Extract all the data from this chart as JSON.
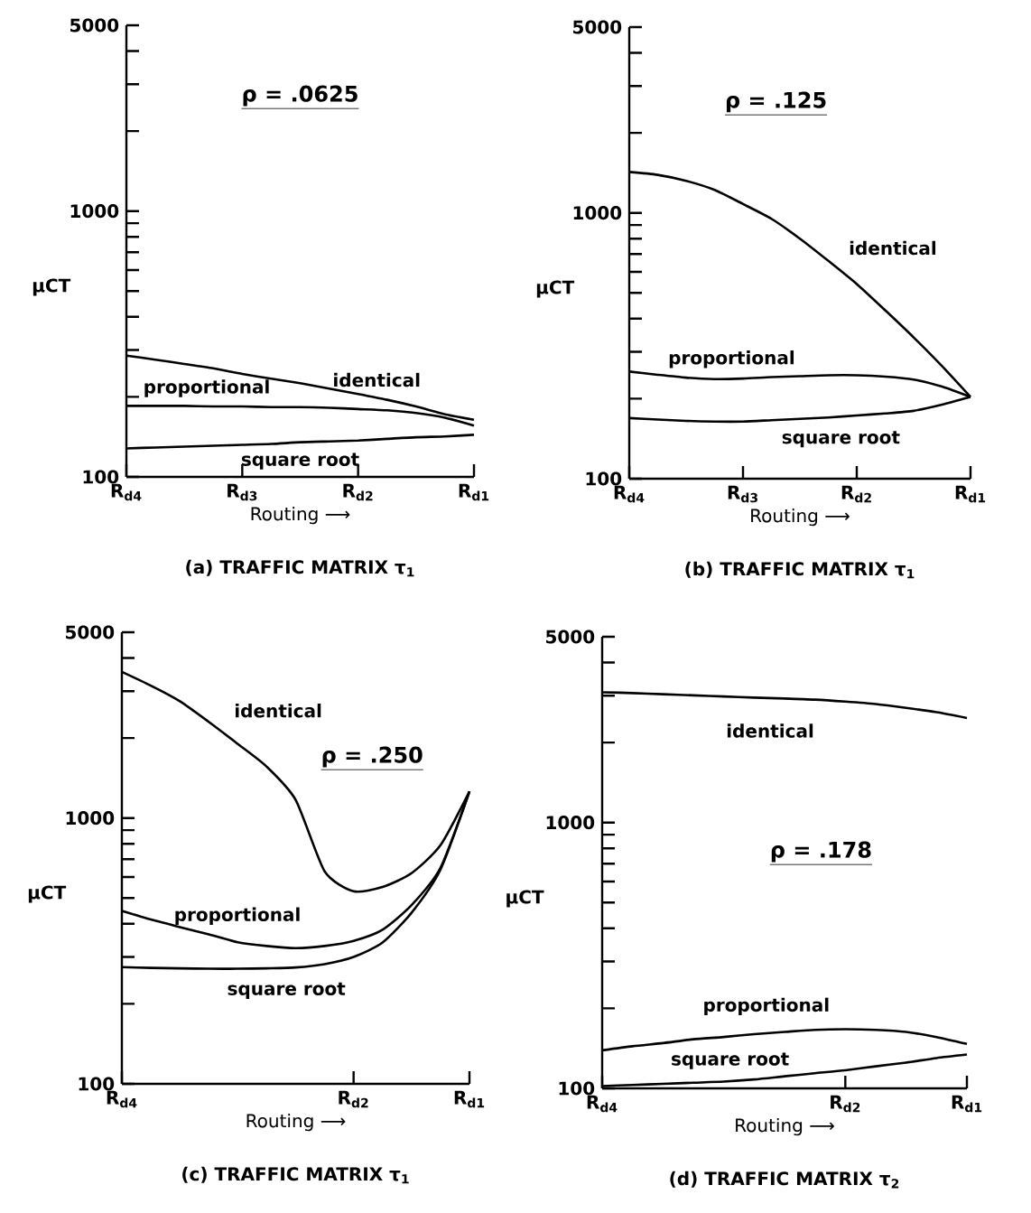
{
  "chart_data": [
    {
      "type": "line",
      "title": "(a) TRAFFIC MATRIX τ$_{1}$",
      "xlabel": "Routing ⟶",
      "ylabel": "μCT",
      "log": "y",
      "marker": "none",
      "line_style": "solid",
      "annotations": [
        "ρ = .0625"
      ],
      "categories": [
        "R$_{d4}$",
        null,
        null,
        null,
        "R$_{d3}$",
        null,
        null,
        null,
        "R$_{d2}$",
        null,
        null,
        null,
        "R$_{d1}$"
      ],
      "ylim": [
        100,
        5000
      ],
      "yticks": [
        100,
        {
          "value": 200,
          "label": null
        },
        {
          "value": 300,
          "label": null
        },
        {
          "value": 400,
          "label": null
        },
        {
          "value": 500,
          "label": null
        },
        {
          "value": 600,
          "label": null
        },
        {
          "value": 700,
          "label": null
        },
        {
          "value": 800,
          "label": null
        },
        {
          "value": 900,
          "label": null
        },
        1000,
        {
          "value": 2000,
          "label": null
        },
        {
          "value": 3000,
          "label": null
        },
        {
          "value": 4000,
          "label": null
        },
        5000
      ],
      "series": [
        {
          "name": "identical",
          "color": "#000000",
          "values": [
            286,
            276,
            266,
            256,
            244,
            234,
            225,
            215,
            205,
            195,
            184,
            172,
            164
          ]
        },
        {
          "name": "proportional",
          "color": "#000000",
          "values": [
            185,
            185,
            185,
            184,
            184,
            183,
            183,
            182,
            180,
            178,
            174,
            167,
            156
          ]
        },
        {
          "name": "square root",
          "color": "#000000",
          "values": [
            128,
            129,
            130,
            131,
            132,
            133,
            135,
            136,
            137,
            139,
            141,
            142,
            144
          ]
        }
      ]
    },
    {
      "type": "line",
      "title": "(b) TRAFFIC MATRIX τ$_{1}$",
      "xlabel": "Routing ⟶",
      "ylabel": "μCT",
      "log": "y",
      "marker": "none",
      "line_style": "solid",
      "annotations": [
        "ρ = .125"
      ],
      "categories": [
        "R$_{d4}$",
        null,
        null,
        null,
        "R$_{d3}$",
        null,
        null,
        null,
        "R$_{d2}$",
        null,
        null,
        null,
        "R$_{d1}$"
      ],
      "ylim": [
        100,
        5000
      ],
      "yticks": [
        100,
        {
          "value": 200,
          "label": null
        },
        {
          "value": 300,
          "label": null
        },
        {
          "value": 400,
          "label": null
        },
        {
          "value": 500,
          "label": null
        },
        {
          "value": 600,
          "label": null
        },
        {
          "value": 700,
          "label": null
        },
        {
          "value": 800,
          "label": null
        },
        {
          "value": 900,
          "label": null
        },
        1000,
        {
          "value": 2000,
          "label": null
        },
        {
          "value": 3000,
          "label": null
        },
        {
          "value": 4000,
          "label": null
        },
        5000
      ],
      "series": [
        {
          "name": "identical",
          "color": "#000000",
          "values": [
            1425,
            1390,
            1320,
            1220,
            1080,
            950,
            800,
            660,
            540,
            430,
            340,
            265,
            203
          ]
        },
        {
          "name": "proportional",
          "color": "#000000",
          "values": [
            253,
            246,
            240,
            237,
            238,
            241,
            243,
            245,
            245,
            242,
            236,
            222,
            203
          ]
        },
        {
          "name": "square root",
          "color": "#000000",
          "values": [
            169,
            167,
            165,
            164,
            164,
            166,
            168,
            170,
            173,
            176,
            180,
            190,
            203
          ]
        }
      ]
    },
    {
      "type": "line",
      "title": "(c) TRAFFIC MATRIX τ$_{1}$",
      "xlabel": "Routing ⟶",
      "ylabel": "μCT",
      "log": "y",
      "marker": "none",
      "line_style": "solid",
      "annotations": [
        "ρ = .250"
      ],
      "categories": [
        "R$_{d4}$",
        null,
        null,
        null,
        null,
        null,
        null,
        null,
        "R$_{d2}$",
        null,
        null,
        null,
        "R$_{d1}$"
      ],
      "ylim": [
        100,
        5000
      ],
      "yticks": [
        100,
        {
          "value": 200,
          "label": null
        },
        {
          "value": 300,
          "label": null
        },
        {
          "value": 400,
          "label": null
        },
        {
          "value": 500,
          "label": null
        },
        {
          "value": 600,
          "label": null
        },
        {
          "value": 700,
          "label": null
        },
        {
          "value": 800,
          "label": null
        },
        {
          "value": 900,
          "label": null
        },
        1000,
        {
          "value": 2000,
          "label": null
        },
        {
          "value": 3000,
          "label": null
        },
        {
          "value": 4000,
          "label": null
        },
        5000
      ],
      "series": [
        {
          "name": "identical",
          "color": "#000000",
          "values": [
            3548,
            3150,
            2750,
            2300,
            1900,
            1560,
            1170,
            630,
            530,
            550,
            620,
            790,
            1259
          ]
        },
        {
          "name": "proportional",
          "color": "#000000",
          "values": [
            447,
            415,
            389,
            365,
            341,
            330,
            324,
            330,
            345,
            380,
            470,
            650,
            1259
          ]
        },
        {
          "name": "square root",
          "color": "#000000",
          "values": [
            275,
            273,
            272,
            271,
            271,
            272,
            274,
            282,
            300,
            340,
            440,
            640,
            1259
          ]
        }
      ]
    },
    {
      "type": "line",
      "title": "(d) TRAFFIC MATRIX τ$_{2}$",
      "xlabel": "Routing ⟶",
      "ylabel": "μCT",
      "log": "y",
      "marker": "none",
      "line_style": "solid",
      "annotations": [
        "ρ = .178"
      ],
      "categories": [
        "R$_{d4}$",
        null,
        null,
        null,
        null,
        null,
        null,
        null,
        "R$_{d2}$",
        null,
        null,
        null,
        "R$_{d1}$"
      ],
      "ylim": [
        100,
        5000
      ],
      "yticks": [
        100,
        {
          "value": 200,
          "label": null
        },
        {
          "value": 300,
          "label": null
        },
        {
          "value": 400,
          "label": null
        },
        {
          "value": 500,
          "label": null
        },
        {
          "value": 600,
          "label": null
        },
        {
          "value": 700,
          "label": null
        },
        {
          "value": 800,
          "label": null
        },
        {
          "value": 900,
          "label": null
        },
        1000,
        {
          "value": 2000,
          "label": null
        },
        {
          "value": 3000,
          "label": null
        },
        {
          "value": 4000,
          "label": null
        },
        5000
      ],
      "series": [
        {
          "name": "identical",
          "color": "#000000",
          "values": [
            3090,
            3070,
            3040,
            3010,
            2980,
            2950,
            2929,
            2900,
            2850,
            2790,
            2700,
            2600,
            2474
          ]
        },
        {
          "name": "proportional",
          "color": "#000000",
          "values": [
            139,
            144,
            148,
            153,
            156,
            160,
            163,
            166,
            167,
            166,
            163,
            156,
            147
          ]
        },
        {
          "name": "square root",
          "color": "#000000",
          "values": [
            102,
            103,
            104,
            105,
            106,
            108,
            111,
            114,
            117,
            121,
            125,
            130,
            134
          ]
        }
      ]
    }
  ]
}
